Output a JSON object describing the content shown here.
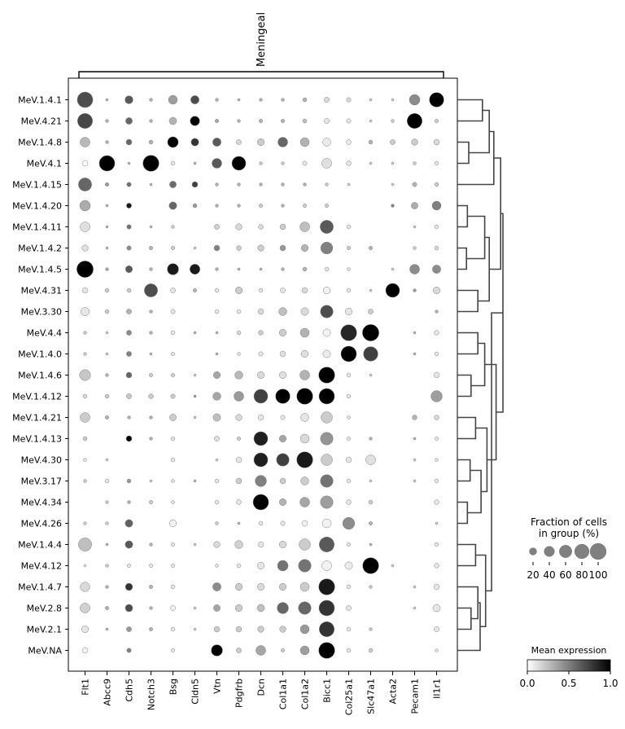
{
  "chart_data": {
    "type": "dotplot",
    "bracket_label": "Meningeal",
    "rows": [
      "MeV.1.4.1",
      "MeV.4.21",
      "MeV.1.4.8",
      "MeV.4.1",
      "MeV.1.4.15",
      "MeV.1.4.20",
      "MeV.1.4.11",
      "MeV.1.4.2",
      "MeV.1.4.5",
      "MeV.4.31",
      "MeV.3.30",
      "MeV.4.4",
      "MeV.1.4.0",
      "MeV.1.4.6",
      "MeV.1.4.12",
      "MeV.1.4.21",
      "MeV.1.4.13",
      "MeV.4.30",
      "MeV.3.17",
      "MeV.4.34",
      "MeV.4.26",
      "MeV.1.4.4",
      "MeV.4.12",
      "MeV.1.4.7",
      "MeV.2.8",
      "MeV.2.1",
      "MeV.NA"
    ],
    "genes": [
      "Flt1",
      "Abcc9",
      "Cdh5",
      "Notch3",
      "Bsg",
      "Cldn5",
      "Vtn",
      "Pdgfrb",
      "Dcn",
      "Col1a1",
      "Col1a2",
      "Bicc1",
      "Col25a1",
      "Slc47a1",
      "Acta2",
      "Pecam1",
      "Il1r1"
    ],
    "fraction_pct": [
      [
        75,
        2,
        20,
        3,
        25,
        22,
        3,
        2,
        3,
        3,
        5,
        8,
        6,
        2,
        2,
        35,
        65
      ],
      [
        70,
        3,
        14,
        3,
        17,
        28,
        4,
        3,
        4,
        4,
        5,
        8,
        6,
        2,
        3,
        70,
        4
      ],
      [
        30,
        3,
        10,
        5,
        36,
        18,
        22,
        8,
        15,
        30,
        25,
        20,
        7,
        5,
        8,
        12,
        10
      ],
      [
        10,
        75,
        2,
        80,
        5,
        2,
        30,
        60,
        3,
        3,
        6,
        30,
        7,
        2,
        2,
        3,
        5
      ],
      [
        55,
        4,
        6,
        2,
        14,
        10,
        3,
        3,
        3,
        3,
        3,
        3,
        2,
        0,
        2,
        6,
        5
      ],
      [
        35,
        2,
        8,
        0,
        18,
        5,
        3,
        3,
        4,
        3,
        4,
        4,
        0,
        0,
        3,
        14,
        25
      ],
      [
        30,
        2,
        6,
        2,
        3,
        0,
        8,
        12,
        7,
        10,
        30,
        55,
        5,
        0,
        0,
        2,
        5
      ],
      [
        12,
        2,
        6,
        4,
        4,
        2,
        10,
        7,
        12,
        10,
        15,
        45,
        4,
        4,
        0,
        3,
        5
      ],
      [
        85,
        3,
        15,
        3,
        40,
        32,
        3,
        2,
        2,
        3,
        5,
        5,
        3,
        0,
        2,
        30,
        22
      ],
      [
        10,
        5,
        5,
        55,
        8,
        4,
        5,
        15,
        5,
        8,
        10,
        15,
        5,
        2,
        60,
        3,
        15
      ],
      [
        22,
        5,
        8,
        3,
        6,
        0,
        5,
        5,
        10,
        20,
        18,
        50,
        15,
        8,
        0,
        0,
        3
      ],
      [
        3,
        2,
        8,
        3,
        5,
        2,
        2,
        5,
        7,
        15,
        25,
        18,
        80,
        85,
        0,
        2,
        7
      ],
      [
        3,
        2,
        8,
        2,
        4,
        0,
        2,
        3,
        6,
        10,
        15,
        18,
        75,
        65,
        0,
        2,
        5
      ],
      [
        38,
        3,
        10,
        4,
        4,
        2,
        15,
        20,
        15,
        15,
        30,
        80,
        5,
        2,
        0,
        0,
        10
      ],
      [
        5,
        5,
        8,
        7,
        6,
        2,
        20,
        30,
        60,
        65,
        80,
        75,
        5,
        0,
        0,
        0,
        40
      ],
      [
        30,
        4,
        3,
        3,
        14,
        2,
        18,
        12,
        10,
        6,
        20,
        40,
        3,
        0,
        0,
        7,
        7
      ],
      [
        5,
        0,
        10,
        3,
        5,
        0,
        8,
        4,
        60,
        15,
        25,
        50,
        4,
        3,
        0,
        2,
        4
      ],
      [
        3,
        2,
        0,
        0,
        5,
        0,
        2,
        10,
        60,
        50,
        80,
        40,
        10,
        30,
        0,
        2,
        3
      ],
      [
        3,
        5,
        5,
        2,
        3,
        2,
        5,
        10,
        40,
        10,
        20,
        50,
        5,
        2,
        0,
        2,
        5
      ],
      [
        0,
        3,
        3,
        4,
        3,
        0,
        5,
        7,
        75,
        15,
        30,
        50,
        7,
        5,
        0,
        0,
        7
      ],
      [
        3,
        3,
        18,
        0,
        15,
        0,
        3,
        2,
        5,
        6,
        10,
        25,
        45,
        4,
        0,
        0,
        2
      ],
      [
        55,
        2,
        18,
        3,
        4,
        2,
        12,
        20,
        10,
        15,
        40,
        70,
        4,
        2,
        0,
        0,
        5
      ],
      [
        2,
        3,
        4,
        4,
        4,
        0,
        3,
        5,
        15,
        35,
        50,
        30,
        18,
        80,
        2,
        0,
        7
      ],
      [
        28,
        3,
        16,
        4,
        5,
        0,
        22,
        15,
        15,
        15,
        25,
        80,
        5,
        3,
        0,
        2,
        10
      ],
      [
        30,
        4,
        17,
        3,
        8,
        2,
        14,
        15,
        17,
        40,
        50,
        75,
        8,
        0,
        0,
        2,
        17
      ],
      [
        15,
        2,
        8,
        4,
        5,
        2,
        10,
        10,
        12,
        12,
        25,
        70,
        5,
        3,
        0,
        0,
        8
      ],
      [
        10,
        0,
        6,
        0,
        4,
        0,
        40,
        8,
        30,
        4,
        25,
        80,
        5,
        5,
        0,
        0,
        3
      ]
    ],
    "mean_expression": [
      [
        0.7,
        0.3,
        0.65,
        0.3,
        0.38,
        0.7,
        0.3,
        0.3,
        0.3,
        0.3,
        0.3,
        0.15,
        0.15,
        0.2,
        0.2,
        0.45,
        1.0
      ],
      [
        0.72,
        0.3,
        0.6,
        0.3,
        0.3,
        1.0,
        0.35,
        0.3,
        0.3,
        0.3,
        0.25,
        0.1,
        0.1,
        0.2,
        0.2,
        1.0,
        0.2
      ],
      [
        0.28,
        0.3,
        0.6,
        0.3,
        1.0,
        0.8,
        0.65,
        0.15,
        0.2,
        0.6,
        0.3,
        0.08,
        0.08,
        0.3,
        0.2,
        0.2,
        0.15
      ],
      [
        0.02,
        1.0,
        0.3,
        1.0,
        0.1,
        0.3,
        0.65,
        1.0,
        0.2,
        0.2,
        0.1,
        0.12,
        0.1,
        0.2,
        0.2,
        0.2,
        0.1
      ],
      [
        0.6,
        0.4,
        0.55,
        0.3,
        0.58,
        0.75,
        0.3,
        0.3,
        0.3,
        0.3,
        0.3,
        0.2,
        0.2,
        0.2,
        0.2,
        0.3,
        0.2
      ],
      [
        0.32,
        0.3,
        0.9,
        0.3,
        0.6,
        0.4,
        0.3,
        0.3,
        0.2,
        0.3,
        0.2,
        0.2,
        0.2,
        0.2,
        0.5,
        0.32,
        0.5
      ],
      [
        0.12,
        0.3,
        0.55,
        0.3,
        0.2,
        0.2,
        0.18,
        0.15,
        0.15,
        0.2,
        0.25,
        0.65,
        0.1,
        0.2,
        0.2,
        0.2,
        0.1
      ],
      [
        0.12,
        0.3,
        0.45,
        0.3,
        0.2,
        0.2,
        0.5,
        0.2,
        0.2,
        0.4,
        0.3,
        0.5,
        0.2,
        0.3,
        0.2,
        0.2,
        0.15
      ],
      [
        1.0,
        0.35,
        0.65,
        0.3,
        0.9,
        0.9,
        0.3,
        0.3,
        0.3,
        0.3,
        0.3,
        0.1,
        0.1,
        0.2,
        0.2,
        0.45,
        0.45
      ],
      [
        0.1,
        0.2,
        0.2,
        0.7,
        0.1,
        0.3,
        0.1,
        0.2,
        0.1,
        0.1,
        0.15,
        0.05,
        0.1,
        0.2,
        1.0,
        0.4,
        0.15
      ],
      [
        0.1,
        0.2,
        0.3,
        0.3,
        0.1,
        0.2,
        0.1,
        0.1,
        0.15,
        0.25,
        0.15,
        0.7,
        0.1,
        0.2,
        0.2,
        0.2,
        0.3
      ],
      [
        0.2,
        0.2,
        0.45,
        0.3,
        0.1,
        0.3,
        0.3,
        0.15,
        0.2,
        0.2,
        0.3,
        0.05,
        0.85,
        1.0,
        0.2,
        0.3,
        0.1
      ],
      [
        0.2,
        0.2,
        0.5,
        0.3,
        0.1,
        0.2,
        0.3,
        0.1,
        0.1,
        0.12,
        0.12,
        0.08,
        1.0,
        0.75,
        0.2,
        0.3,
        0.1
      ],
      [
        0.22,
        0.3,
        0.6,
        0.2,
        0.2,
        0.2,
        0.35,
        0.28,
        0.15,
        0.12,
        0.3,
        1.0,
        0.1,
        0.2,
        0.2,
        0.2,
        0.1
      ],
      [
        0.15,
        0.2,
        0.22,
        0.2,
        0.2,
        0.4,
        0.35,
        0.4,
        0.75,
        1.0,
        1.0,
        1.0,
        0.1,
        0.2,
        0.2,
        0.2,
        0.38
      ],
      [
        0.2,
        0.3,
        0.3,
        0.3,
        0.2,
        0.2,
        0.25,
        0.15,
        0.1,
        0.1,
        0.1,
        0.2,
        0.1,
        0.2,
        0.2,
        0.3,
        0.15
      ],
      [
        0.2,
        0.2,
        1.0,
        0.3,
        0.1,
        0.2,
        0.12,
        0.2,
        0.88,
        0.35,
        0.15,
        0.42,
        0.1,
        0.3,
        0.2,
        0.3,
        0.1
      ],
      [
        0.1,
        0.2,
        0.2,
        0.2,
        0.1,
        0.2,
        0.2,
        0.1,
        0.88,
        0.75,
        0.9,
        0.2,
        0.1,
        0.12,
        0.2,
        0.2,
        0.1
      ],
      [
        0.2,
        0.1,
        0.4,
        0.2,
        0.1,
        0.3,
        0.1,
        0.2,
        0.5,
        0.2,
        0.2,
        0.55,
        0.1,
        0.2,
        0.2,
        0.2,
        0.1
      ],
      [
        0.2,
        0.2,
        0.3,
        0.2,
        0.1,
        0.2,
        0.1,
        0.1,
        1.0,
        0.3,
        0.35,
        0.38,
        0.1,
        0.2,
        0.2,
        0.2,
        0.1
      ],
      [
        0.2,
        0.2,
        0.62,
        0.2,
        0.05,
        0.2,
        0.2,
        0.3,
        0.1,
        0.1,
        0.05,
        0.05,
        0.45,
        0.3,
        0.2,
        0.2,
        0.2
      ],
      [
        0.25,
        0.3,
        0.65,
        0.3,
        0.1,
        0.2,
        0.15,
        0.18,
        0.1,
        0.15,
        0.2,
        0.65,
        0.1,
        0.3,
        0.2,
        0.2,
        0.1
      ],
      [
        0.1,
        0.2,
        0.1,
        0.1,
        0.1,
        0.2,
        0.1,
        0.1,
        0.1,
        0.55,
        0.55,
        0.05,
        0.08,
        1.0,
        0.2,
        0.2,
        0.1
      ],
      [
        0.15,
        0.3,
        0.8,
        0.3,
        0.1,
        0.2,
        0.45,
        0.2,
        0.15,
        0.2,
        0.2,
        0.9,
        0.1,
        0.2,
        0.2,
        0.2,
        0.1
      ],
      [
        0.18,
        0.3,
        0.7,
        0.3,
        0.05,
        0.2,
        0.35,
        0.2,
        0.25,
        0.6,
        0.6,
        0.8,
        0.1,
        0.2,
        0.2,
        0.2,
        0.1
      ],
      [
        0.1,
        0.3,
        0.4,
        0.3,
        0.1,
        0.2,
        0.2,
        0.2,
        0.2,
        0.2,
        0.4,
        0.8,
        0.1,
        0.2,
        0.2,
        0.2,
        0.1
      ],
      [
        0.05,
        0.2,
        0.5,
        0.2,
        0.1,
        0.2,
        1.0,
        0.2,
        0.35,
        0.2,
        0.38,
        1.0,
        0.1,
        0.2,
        0.2,
        0.2,
        0.1
      ]
    ],
    "size_legend": {
      "title_line1": "Fraction of cells",
      "title_line2": "in group (%)",
      "values": [
        20,
        40,
        60,
        80,
        100
      ],
      "tick_labels": [
        "20",
        "40",
        "60",
        "80",
        "100"
      ]
    },
    "color_legend": {
      "title": "Mean expression",
      "tick_labels": [
        "0.0",
        "0.5",
        "1.0"
      ],
      "range": [
        0.0,
        1.0
      ],
      "colormap": [
        "#ffffff",
        "#000000"
      ]
    },
    "dendrogram": {
      "leaf_order": [
        "MeV.1.4.1",
        "MeV.4.21",
        "MeV.1.4.8",
        "MeV.4.1",
        "MeV.1.4.15",
        "MeV.1.4.20",
        "MeV.1.4.11",
        "MeV.1.4.2",
        "MeV.1.4.5",
        "MeV.4.31",
        "MeV.3.30",
        "MeV.4.4",
        "MeV.1.4.0",
        "MeV.1.4.6",
        "MeV.1.4.12",
        "MeV.1.4.21",
        "MeV.1.4.13",
        "MeV.4.30",
        "MeV.3.17",
        "MeV.4.34",
        "MeV.4.26",
        "MeV.1.4.4",
        "MeV.4.12",
        "MeV.1.4.7",
        "MeV.2.8",
        "MeV.2.1",
        "MeV.NA"
      ],
      "merges": [
        [
          0,
          1,
          0.55
        ],
        [
          2,
          3,
          0.25
        ],
        [
          27,
          28,
          0.7
        ],
        [
          29,
          4,
          0.8
        ],
        [
          5,
          6,
          0.22
        ],
        [
          7,
          8,
          0.2
        ],
        [
          31,
          32,
          0.6
        ],
        [
          9,
          10,
          0.45
        ],
        [
          33,
          34,
          0.7
        ],
        [
          30,
          35,
          0.95
        ],
        [
          11,
          12,
          0.45
        ],
        [
          13,
          14,
          0.3
        ],
        [
          37,
          38,
          0.6
        ],
        [
          15,
          16,
          0.4
        ],
        [
          17,
          18,
          0.28
        ],
        [
          19,
          20,
          0.22
        ],
        [
          41,
          42,
          0.52
        ],
        [
          40,
          43,
          0.65
        ],
        [
          39,
          44,
          0.85
        ],
        [
          36,
          45,
          1.0
        ],
        [
          21,
          22,
          0.4
        ],
        [
          24,
          25,
          0.3
        ],
        [
          23,
          48,
          0.45
        ],
        [
          26,
          49,
          0.5
        ],
        [
          47,
          50,
          0.62
        ],
        [
          46,
          51,
          0.75
        ],
        [
          52,
          0,
          0
        ]
      ]
    }
  }
}
